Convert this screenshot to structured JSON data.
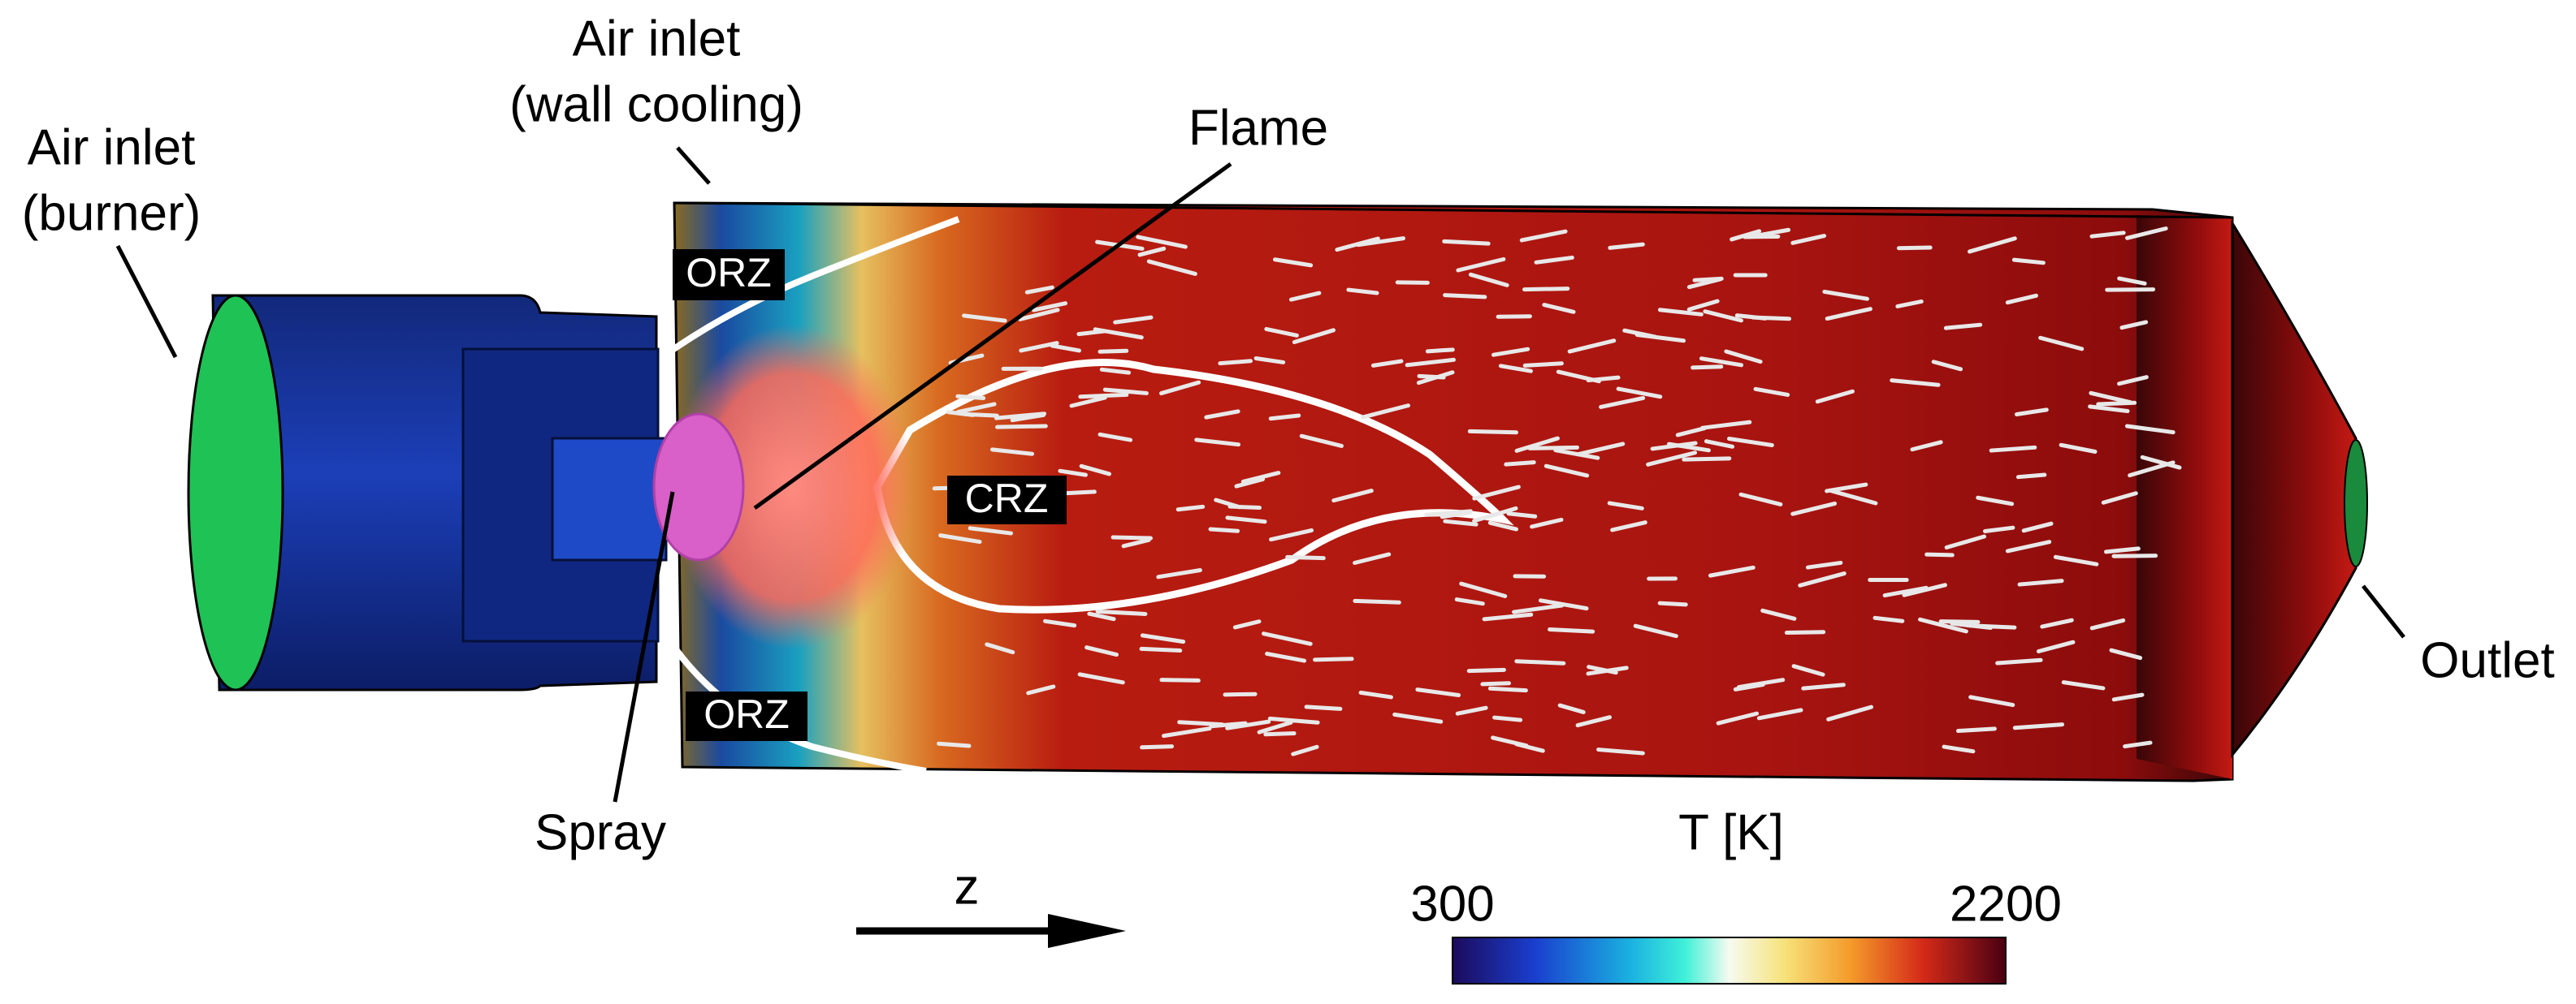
{
  "annotations": [
    {
      "lines": [
        "Air inlet",
        "(burner)"
      ]
    },
    {
      "lines": [
        "Air inlet",
        "(wall cooling)"
      ]
    },
    {
      "lines": [
        "Flame"
      ]
    },
    {
      "lines": [
        "Spray"
      ]
    },
    {
      "lines": [
        "Outlet"
      ]
    }
  ],
  "regions": [
    "ORZ",
    "ORZ",
    "CRZ"
  ],
  "axis": {
    "label": "z"
  },
  "colorbar": {
    "title": "T [K]",
    "min": 300,
    "max": 2200
  }
}
